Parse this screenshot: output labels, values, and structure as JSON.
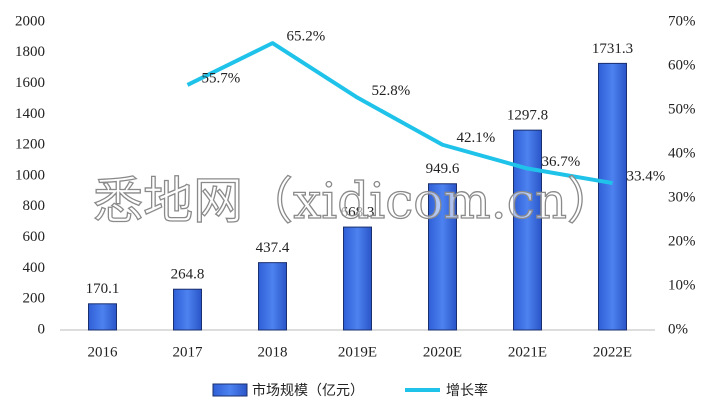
{
  "chart_data": {
    "type": "bar",
    "categories": [
      "2016",
      "2017",
      "2018",
      "2019E",
      "2020E",
      "2021E",
      "2022E"
    ],
    "series": [
      {
        "name": "市场规模（亿元）",
        "type": "bar",
        "color": "#3d6fe0",
        "values": [
          170.1,
          264.8,
          437.4,
          668.3,
          949.6,
          1297.8,
          1731.3
        ]
      },
      {
        "name": "增长率",
        "type": "line",
        "axis": "y2",
        "color": "#1fc3ea",
        "values": [
          null,
          55.7,
          65.2,
          52.8,
          42.1,
          36.7,
          33.4
        ],
        "value_labels": [
          null,
          "55.7%",
          "65.2%",
          "52.8%",
          "42.1%",
          "36.7%",
          "33.4%"
        ]
      }
    ],
    "ylim": [
      0,
      2000
    ],
    "yticks": [
      0,
      200,
      400,
      600,
      800,
      1000,
      1200,
      1400,
      1600,
      1800,
      2000
    ],
    "y2lim": [
      0,
      70
    ],
    "y2ticks": [
      {
        "value": 0,
        "label": "0%"
      },
      {
        "value": 10,
        "label": "10%"
      },
      {
        "value": 20,
        "label": "20%"
      },
      {
        "value": 30,
        "label": "30%"
      },
      {
        "value": 40,
        "label": "40%"
      },
      {
        "value": 50,
        "label": "50%"
      },
      {
        "value": 60,
        "label": "60%"
      },
      {
        "value": 70,
        "label": "70%"
      }
    ],
    "watermark": "悉地网（xidicom.cn）",
    "legend": "bottom"
  }
}
